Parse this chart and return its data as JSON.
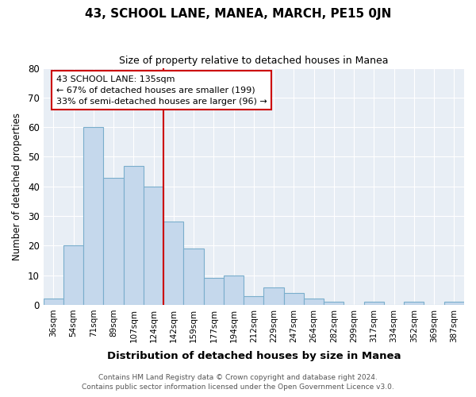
{
  "title": "43, SCHOOL LANE, MANEA, MARCH, PE15 0JN",
  "subtitle": "Size of property relative to detached houses in Manea",
  "xlabel": "Distribution of detached houses by size in Manea",
  "ylabel": "Number of detached properties",
  "bar_color": "#c5d8ec",
  "bar_edge_color": "#7aaecc",
  "bar_edge_width": 0.8,
  "bin_labels": [
    "36sqm",
    "54sqm",
    "71sqm",
    "89sqm",
    "107sqm",
    "124sqm",
    "142sqm",
    "159sqm",
    "177sqm",
    "194sqm",
    "212sqm",
    "229sqm",
    "247sqm",
    "264sqm",
    "282sqm",
    "299sqm",
    "317sqm",
    "334sqm",
    "352sqm",
    "369sqm",
    "387sqm"
  ],
  "bar_heights": [
    2,
    20,
    60,
    43,
    47,
    40,
    28,
    19,
    9,
    10,
    3,
    6,
    4,
    2,
    1,
    0,
    1,
    0,
    1,
    0,
    1
  ],
  "vline_x": 6,
  "vline_color": "#cc0000",
  "ylim": [
    0,
    80
  ],
  "yticks": [
    0,
    10,
    20,
    30,
    40,
    50,
    60,
    70,
    80
  ],
  "annotation_line1": "43 SCHOOL LANE: 135sqm",
  "annotation_line2": "← 67% of detached houses are smaller (199)",
  "annotation_line3": "33% of semi-detached houses are larger (96) →",
  "footer_line1": "Contains HM Land Registry data © Crown copyright and database right 2024.",
  "footer_line2": "Contains public sector information licensed under the Open Government Licence v3.0.",
  "background_color": "#ffffff",
  "plot_bg_color": "#e8eef5",
  "grid_color": "#ffffff"
}
